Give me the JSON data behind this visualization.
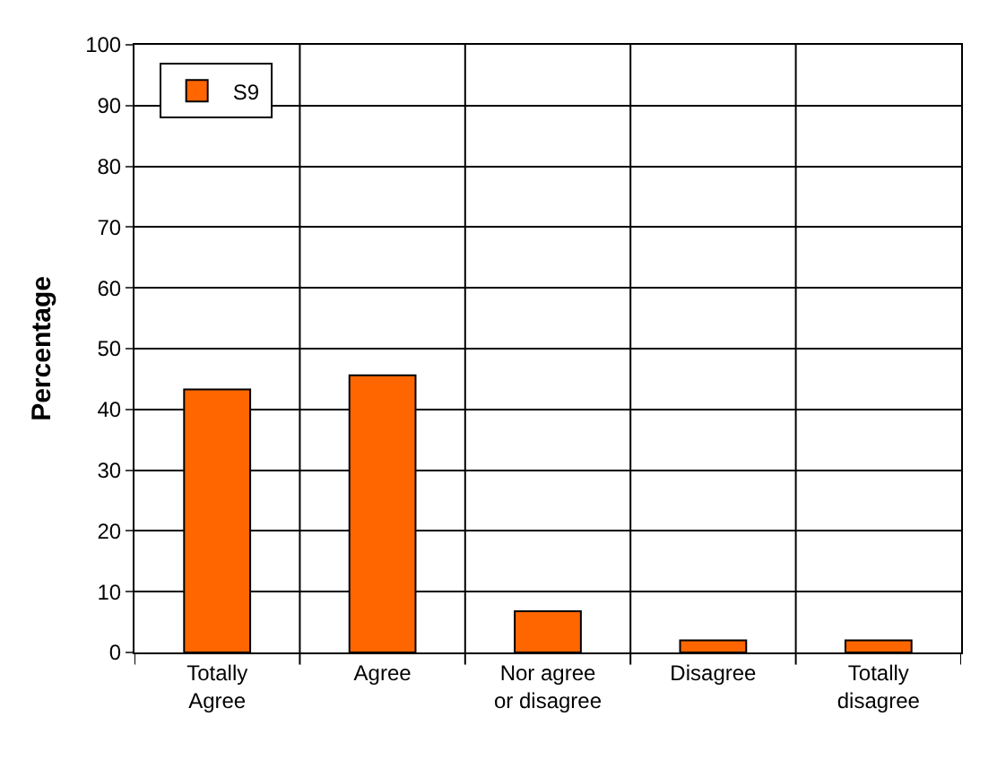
{
  "chart_data": {
    "type": "bar",
    "ylabel": "Percentage",
    "categories": [
      "Totally\nAgree",
      "Agree",
      "Nor agree\nor disagree",
      "Disagree",
      "Totally\ndisagree"
    ],
    "series": [
      {
        "name": "S9",
        "color": "#ff6600",
        "values": [
          43.3,
          45.6,
          6.8,
          2.0,
          2.0
        ]
      }
    ],
    "ylim": [
      0,
      100
    ],
    "yticks": [
      0,
      10,
      20,
      30,
      40,
      50,
      60,
      70,
      80,
      90,
      100
    ],
    "grid": true,
    "legend": "top left"
  }
}
